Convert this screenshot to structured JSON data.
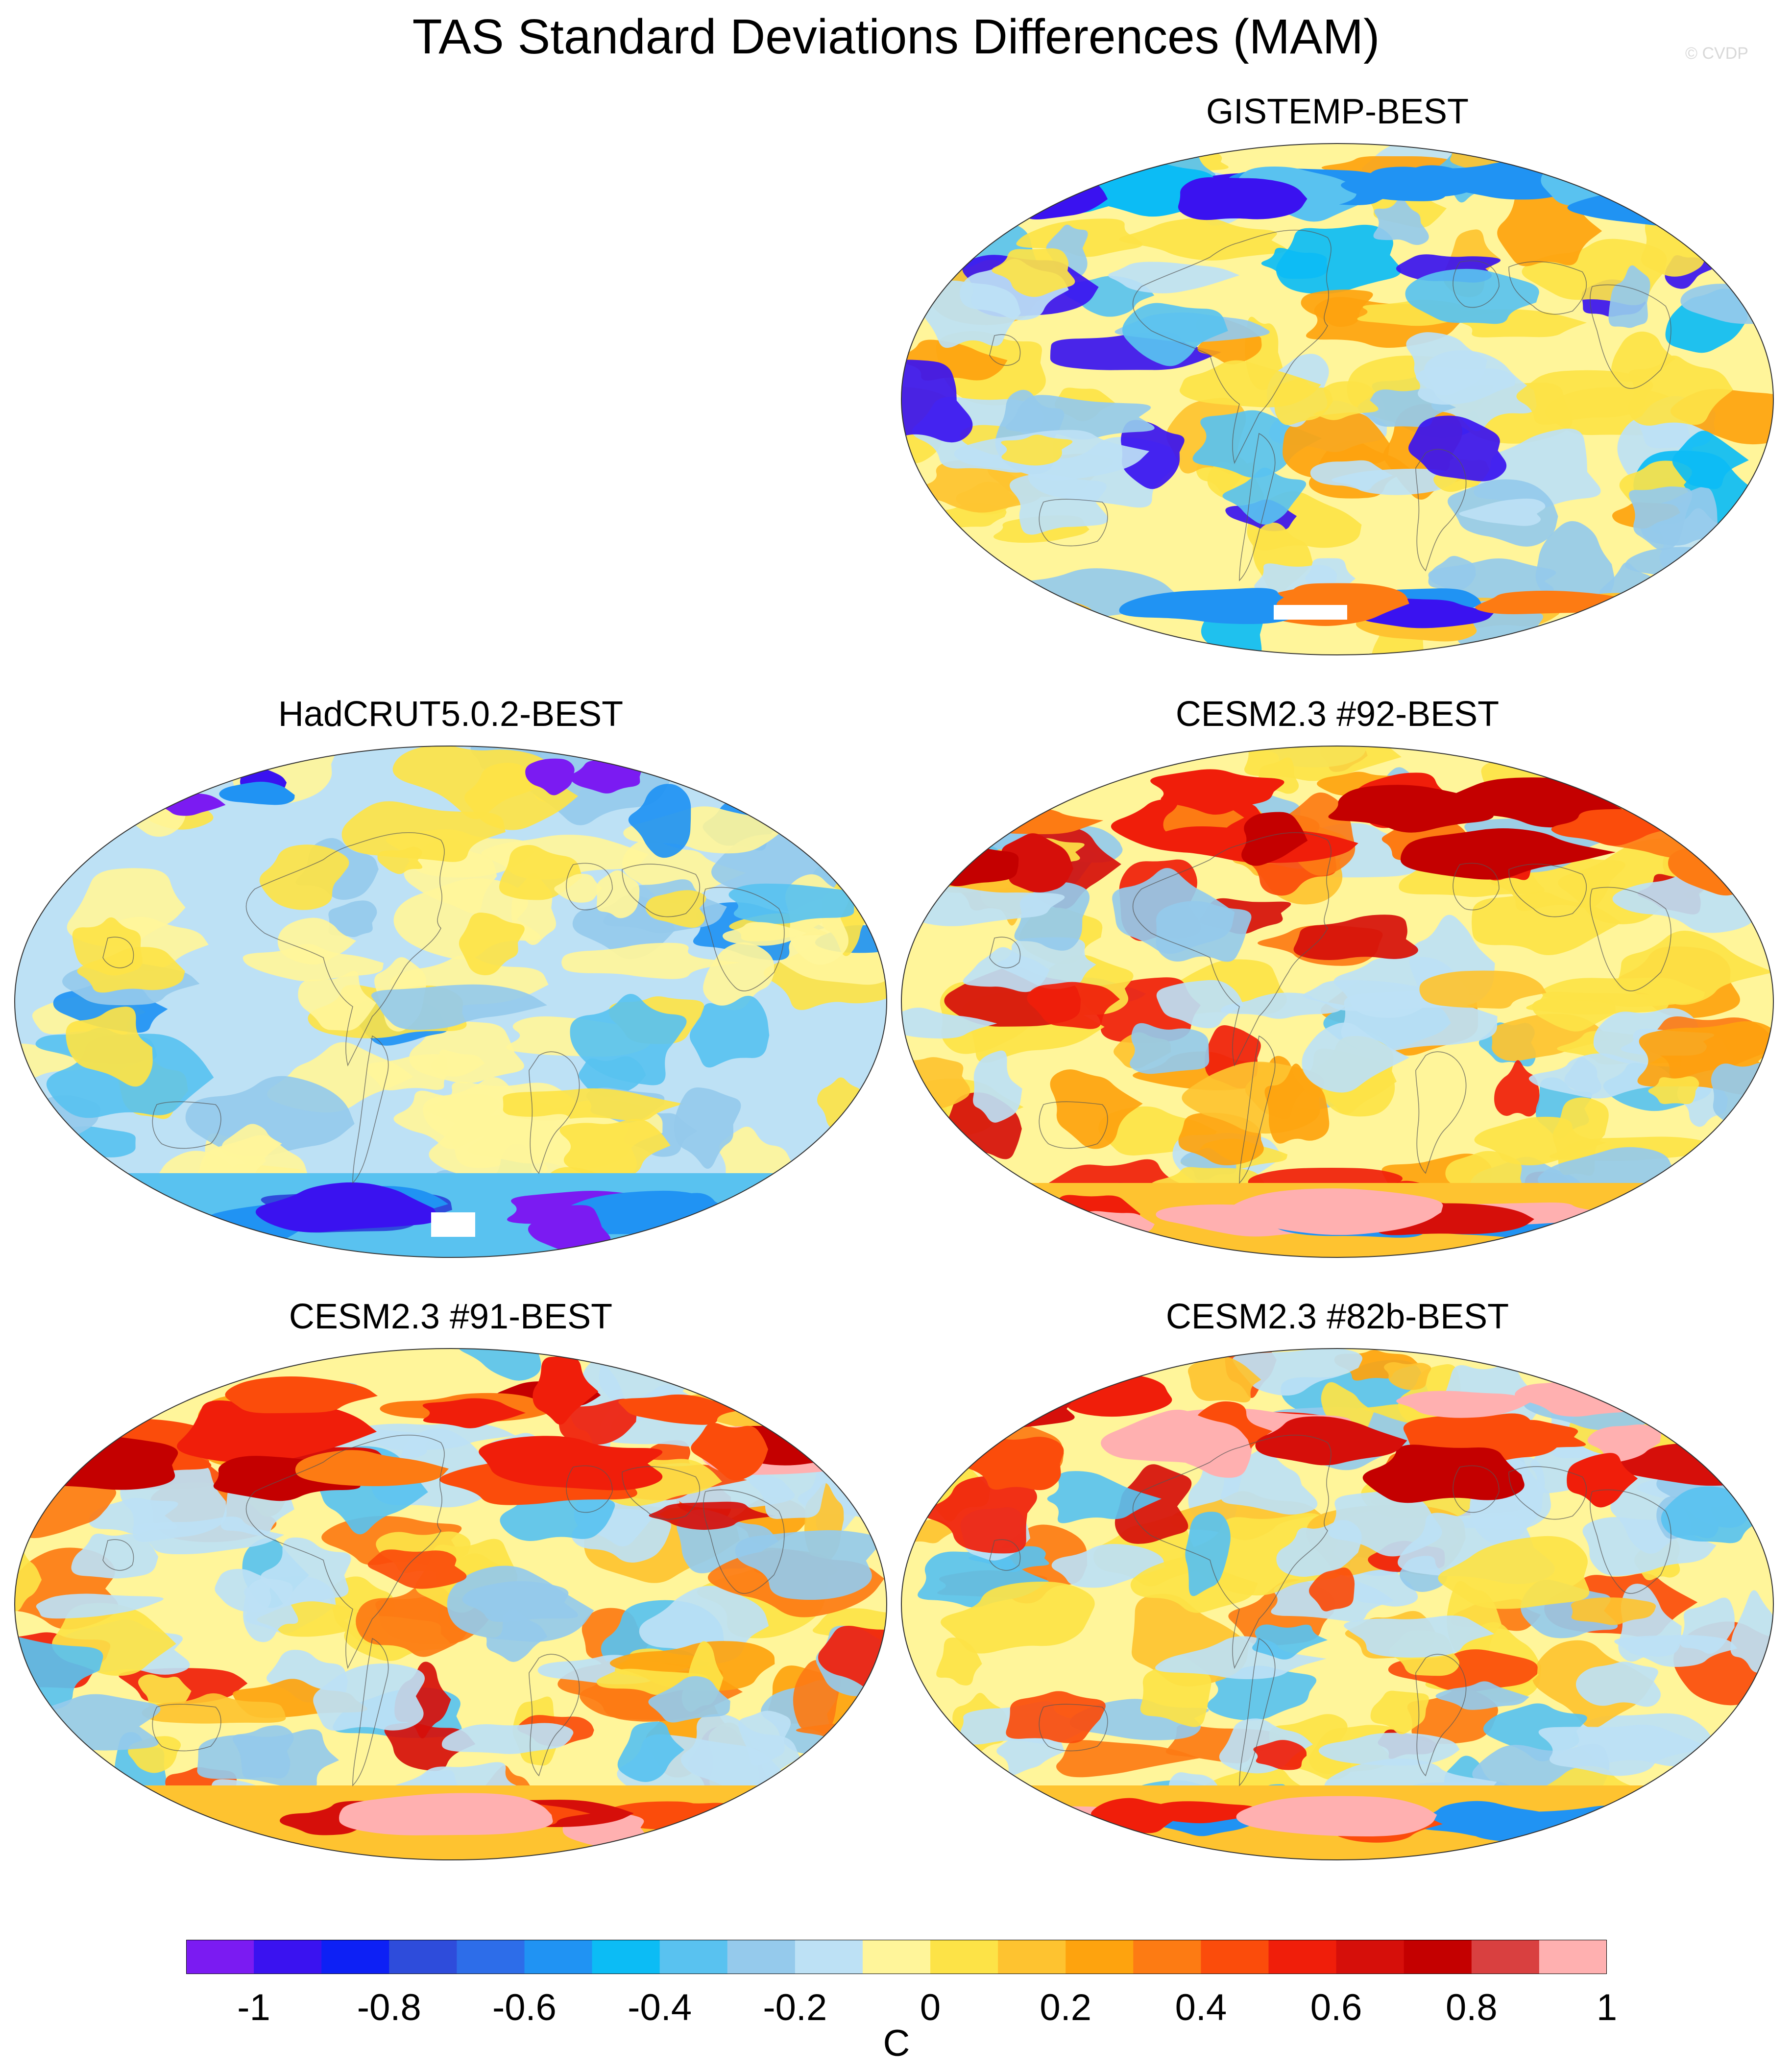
{
  "title": "TAS Standard Deviations Differences (MAM)",
  "watermark": "© CVDP",
  "panels": [
    {
      "id": "gistemp",
      "title": "GISTEMP-BEST",
      "style": "mixed"
    },
    {
      "id": "hadcrut",
      "title": "HadCRUT5.0.2-BEST",
      "style": "cool"
    },
    {
      "id": "cesm92",
      "title": "CESM2.3 #92-BEST",
      "style": "warm"
    },
    {
      "id": "cesm91",
      "title": "CESM2.3 #91-BEST",
      "style": "warm"
    },
    {
      "id": "cesm82b",
      "title": "CESM2.3 #82b-BEST",
      "style": "warm"
    }
  ],
  "colorbar": {
    "colors": [
      "#7b1bf2",
      "#3a12f0",
      "#0d20f5",
      "#2e4cdb",
      "#2d6de9",
      "#2093f3",
      "#0cbcf5",
      "#59c2f0",
      "#95caec",
      "#bde1f5",
      "#fff59a",
      "#fde347",
      "#fec330",
      "#fea30e",
      "#fd7b13",
      "#fb4c0b",
      "#f01e0a",
      "#d60f0a",
      "#c40000",
      "#d94040",
      "#ffb0b0"
    ],
    "tick_labels": [
      "-1",
      "-0.8",
      "-0.6",
      "-0.4",
      "-0.2",
      "0",
      "0.2",
      "0.4",
      "0.6",
      "0.8",
      "1"
    ],
    "units": "C"
  }
}
